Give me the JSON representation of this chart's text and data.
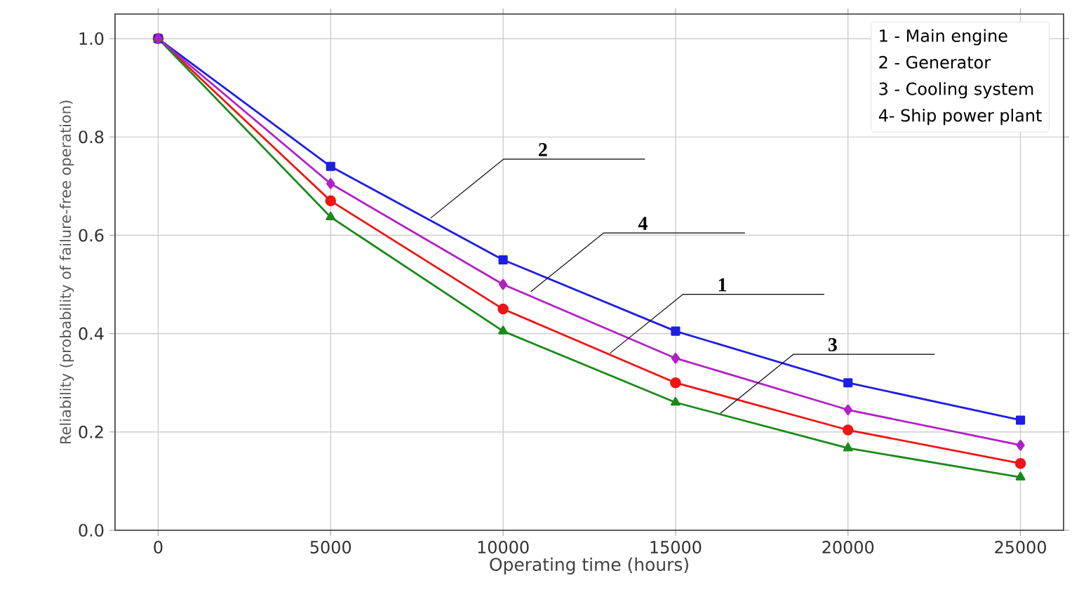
{
  "chart_data": {
    "type": "line",
    "xlabel": "Operating time (hours)",
    "ylabel": "Reliability (probability of failure-free operation)",
    "x": [
      0,
      5000,
      10000,
      15000,
      20000,
      25000
    ],
    "series": [
      {
        "color": "#f01414",
        "marker": "circle",
        "values": [
          1.0,
          0.67,
          0.45,
          0.3,
          0.204,
          0.136
        ]
      },
      {
        "color": "#1e1ee6",
        "marker": "square",
        "values": [
          1.0,
          0.74,
          0.55,
          0.405,
          0.3,
          0.224
        ]
      },
      {
        "color": "#1a8a1a",
        "marker": "triangle",
        "values": [
          1.0,
          0.637,
          0.405,
          0.26,
          0.167,
          0.108
        ]
      },
      {
        "color": "#b21fc6",
        "marker": "diamond",
        "values": [
          1.0,
          0.705,
          0.5,
          0.35,
          0.245,
          0.173
        ]
      }
    ],
    "annotations": [
      "1 - Main engine",
      "2 - Generator",
      "3 - Cooling system",
      "4- Ship power plant",
      {
        "text": "2",
        "x": 7900,
        "y": 0.635
      },
      {
        "text": "4",
        "x": 10800,
        "y": 0.485
      },
      {
        "text": "1",
        "x": 13100,
        "y": 0.36
      },
      {
        "text": "3",
        "x": 16300,
        "y": 0.238
      }
    ],
    "xlim": [
      -1250,
      26250
    ],
    "ylim": [
      0,
      1.05
    ],
    "xticks": [
      0,
      5000,
      10000,
      15000,
      20000,
      25000
    ],
    "yticks": [
      {
        "value": 0,
        "label": "0.0"
      },
      {
        "value": 0.2,
        "label": "0.2"
      },
      {
        "value": 0.4,
        "label": "0.4"
      },
      {
        "value": 0.6,
        "label": "0.6"
      },
      {
        "value": 0.8,
        "label": "0.8"
      },
      {
        "value": 1.0,
        "label": "1.0"
      }
    ],
    "grid": true,
    "line_style": "solid"
  }
}
